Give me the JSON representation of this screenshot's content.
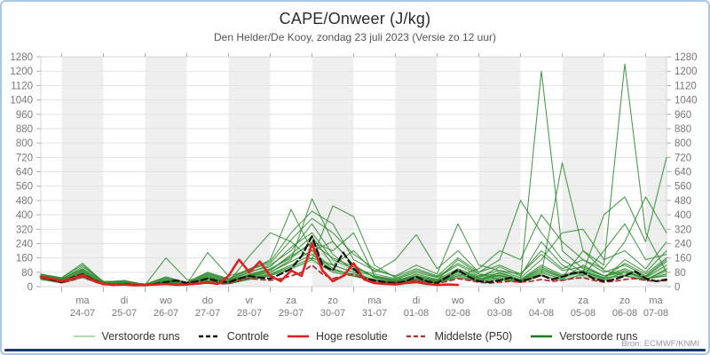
{
  "header": {
    "title": "CAPE/Onweer (J/kg)",
    "subtitle": "Den Helder/De Kooy, zondag 23 juli 2023 (Versie zo 12 uur)"
  },
  "footer": {
    "source": "Bron: ECMWF/KNMI"
  },
  "colors": {
    "frame_border": "#a9c7e7",
    "bottom_bar": "#1b3a6b",
    "band_grey": "#efefef",
    "gridline": "#e3e3e3",
    "axis_text": "#777777",
    "tick": "#aaaaaa",
    "member_green": "#2e8b2e",
    "member_lightgreen": "#b6d8b0",
    "controle_black": "#111111",
    "hires_red": "#e02020",
    "p50_darkred": "#b03030"
  },
  "legend": [
    {
      "label": "Verstoorde runs",
      "color": "#b6d8b0",
      "dash": "",
      "width": 2
    },
    {
      "label": "Controle",
      "color": "#111111",
      "dash": "5 3",
      "width": 2.4
    },
    {
      "label": "Hoge resolutie",
      "color": "#e02020",
      "dash": "",
      "width": 2.6
    },
    {
      "label": "Middelste (P50)",
      "color": "#b03030",
      "dash": "5 3",
      "width": 2.2
    },
    {
      "label": "Verstoorde runs",
      "color": "#1e7a1e",
      "dash": "",
      "width": 2.4
    }
  ],
  "chart_data": {
    "type": "line",
    "title": "CAPE/Onweer (J/kg)",
    "subtitle": "Den Helder/De Kooy, zondag 23 juli 2023 (Versie zo 12 uur)",
    "ylim": [
      0,
      1280
    ],
    "y_ticks": [
      0,
      80,
      160,
      240,
      320,
      400,
      480,
      560,
      640,
      720,
      800,
      880,
      960,
      1040,
      1120,
      1200,
      1280
    ],
    "x_range_hours": [
      0,
      360
    ],
    "grid": true,
    "legend_position": "bottom",
    "x_days": [
      {
        "dow": "ma",
        "date": "24-07"
      },
      {
        "dow": "di",
        "date": "25-07"
      },
      {
        "dow": "wo",
        "date": "26-07"
      },
      {
        "dow": "do",
        "date": "27-07"
      },
      {
        "dow": "vr",
        "date": "28-07"
      },
      {
        "dow": "za",
        "date": "29-07"
      },
      {
        "dow": "zo",
        "date": "30-07"
      },
      {
        "dow": "ma",
        "date": "31-07"
      },
      {
        "dow": "di",
        "date": "01-08"
      },
      {
        "dow": "wo",
        "date": "02-08"
      },
      {
        "dow": "do",
        "date": "03-08"
      },
      {
        "dow": "vr",
        "date": "04-08"
      },
      {
        "dow": "za",
        "date": "05-08"
      },
      {
        "dow": "zo",
        "date": "06-08"
      },
      {
        "dow": "ma",
        "date": "07-08"
      }
    ],
    "series": {
      "controle": {
        "name": "Controle",
        "step_hours": 6,
        "values": [
          55,
          40,
          25,
          50,
          70,
          40,
          15,
          10,
          15,
          10,
          8,
          15,
          25,
          35,
          20,
          30,
          45,
          30,
          25,
          45,
          60,
          50,
          45,
          70,
          100,
          170,
          280,
          120,
          90,
          190,
          100,
          45,
          35,
          25,
          20,
          30,
          55,
          30,
          20,
          55,
          95,
          55,
          30,
          25,
          35,
          50,
          30,
          45,
          65,
          40,
          55,
          75,
          80,
          45,
          30,
          40,
          60,
          85,
          45,
          30,
          40
        ]
      },
      "hoge_resolutie": {
        "name": "Hoge resolutie",
        "step_hours": 6,
        "values": [
          55,
          45,
          30,
          45,
          65,
          35,
          15,
          10,
          12,
          8,
          10,
          12,
          15,
          10,
          12,
          18,
          22,
          15,
          60,
          150,
          80,
          140,
          60,
          30,
          90,
          60,
          240,
          90,
          30,
          60,
          130,
          40,
          20,
          15,
          12,
          20,
          25,
          15,
          10,
          12,
          10
        ]
      },
      "middelste_p50": {
        "name": "Middelste (P50)",
        "step_hours": 6,
        "values": [
          50,
          35,
          22,
          35,
          55,
          30,
          12,
          8,
          10,
          8,
          8,
          10,
          15,
          12,
          10,
          15,
          20,
          15,
          18,
          35,
          45,
          40,
          35,
          45,
          60,
          80,
          120,
          70,
          45,
          60,
          70,
          40,
          30,
          25,
          20,
          25,
          35,
          25,
          18,
          30,
          45,
          35,
          25,
          20,
          25,
          30,
          25,
          30,
          40,
          30,
          35,
          45,
          50,
          35,
          25,
          30,
          40,
          45,
          35,
          30,
          35
        ]
      },
      "verstoorde_runs": {
        "name": "Verstoorde runs",
        "step_hours": 12,
        "members": [
          [
            60,
            40,
            110,
            30,
            25,
            15,
            45,
            20,
            60,
            30,
            80,
            120,
            200,
            350,
            180,
            90,
            60,
            40,
            80,
            50,
            120,
            60,
            90,
            70,
            200,
            100,
            150,
            80,
            120,
            60,
            150
          ],
          [
            55,
            30,
            70,
            20,
            15,
            10,
            160,
            40,
            30,
            20,
            60,
            80,
            150,
            490,
            250,
            120,
            50,
            30,
            40,
            25,
            80,
            40,
            60,
            30,
            90,
            50,
            200,
            120,
            1240,
            300,
            80
          ],
          [
            70,
            50,
            130,
            25,
            35,
            12,
            30,
            15,
            190,
            60,
            90,
            150,
            430,
            200,
            100,
            60,
            40,
            25,
            60,
            35,
            150,
            70,
            40,
            25,
            70,
            690,
            200,
            90,
            60,
            40,
            90
          ],
          [
            45,
            25,
            60,
            15,
            10,
            8,
            25,
            12,
            50,
            25,
            170,
            300,
            250,
            150,
            450,
            390,
            120,
            50,
            30,
            20,
            60,
            30,
            80,
            40,
            1200,
            200,
            100,
            60,
            80,
            50,
            120
          ],
          [
            50,
            35,
            90,
            20,
            20,
            10,
            35,
            18,
            70,
            40,
            60,
            90,
            180,
            280,
            120,
            200,
            80,
            150,
            290,
            100,
            200,
            80,
            150,
            480,
            300,
            150,
            80,
            400,
            500,
            250,
            720
          ],
          [
            65,
            45,
            95,
            30,
            28,
            14,
            50,
            25,
            80,
            45,
            100,
            140,
            300,
            420,
            350,
            150,
            90,
            60,
            120,
            70,
            350,
            120,
            90,
            50,
            150,
            300,
            320,
            150,
            200,
            100,
            250
          ],
          [
            40,
            20,
            50,
            10,
            8,
            6,
            20,
            10,
            25,
            15,
            40,
            60,
            100,
            150,
            80,
            60,
            30,
            20,
            40,
            25,
            70,
            35,
            50,
            25,
            80,
            40,
            120,
            60,
            90,
            45,
            60
          ],
          [
            58,
            38,
            85,
            22,
            18,
            9,
            30,
            14,
            55,
            28,
            70,
            100,
            160,
            250,
            200,
            300,
            60,
            35,
            55,
            30,
            90,
            50,
            110,
            60,
            250,
            120,
            60,
            200,
            350,
            150,
            180
          ],
          [
            48,
            28,
            65,
            18,
            12,
            7,
            22,
            11,
            35,
            20,
            50,
            70,
            120,
            180,
            90,
            70,
            40,
            25,
            45,
            28,
            60,
            100,
            200,
            150,
            400,
            250,
            150,
            100,
            250,
            500,
            300
          ],
          [
            62,
            42,
            100,
            26,
            22,
            11,
            40,
            18,
            65,
            35,
            85,
            110,
            220,
            300,
            150,
            100,
            70,
            45,
            90,
            55,
            130,
            70,
            60,
            35,
            100,
            55,
            80,
            45,
            150,
            80,
            200
          ],
          [
            52,
            32,
            75,
            16,
            14,
            8,
            28,
            13,
            45,
            22,
            55,
            80,
            140,
            200,
            250,
            120,
            50,
            30,
            70,
            40,
            100,
            55,
            75,
            40,
            120,
            65,
            90,
            50,
            60,
            35,
            100
          ],
          [
            68,
            48,
            120,
            28,
            30,
            13,
            55,
            22,
            75,
            40,
            95,
            130,
            260,
            380,
            300,
            180,
            100,
            55,
            100,
            60,
            160,
            80,
            120,
            70,
            180,
            90,
            110,
            60,
            100,
            55,
            140
          ],
          [
            44,
            24,
            55,
            12,
            10,
            6,
            18,
            9,
            30,
            16,
            45,
            65,
            110,
            160,
            120,
            80,
            35,
            22,
            35,
            20,
            50,
            28,
            40,
            22,
            60,
            32,
            70,
            38,
            80,
            42,
            70
          ],
          [
            56,
            36,
            80,
            20,
            16,
            9,
            32,
            15,
            50,
            26,
            65,
            95,
            170,
            240,
            160,
            110,
            55,
            32,
            60,
            35,
            85,
            45,
            65,
            35,
            110,
            58,
            85,
            48,
            130,
            70,
            160
          ]
        ]
      },
      "verstoorde_runs_oud": {
        "name": "Verstoorde runs",
        "step_hours": 12,
        "members": [
          [
            50,
            30,
            70,
            18,
            14,
            8,
            25,
            12,
            40,
            20,
            50,
            70,
            120,
            180,
            100,
            70,
            40,
            25,
            50,
            30,
            70,
            40,
            55,
            30,
            80,
            45,
            65,
            40,
            70,
            45,
            80
          ],
          [
            60,
            35,
            90,
            22,
            18,
            10,
            35,
            16,
            55,
            28,
            65,
            90,
            160,
            220,
            140,
            90,
            55,
            35,
            65,
            40,
            90,
            50,
            70,
            40,
            100,
            55,
            80,
            50,
            90,
            55,
            110
          ],
          [
            42,
            22,
            55,
            14,
            10,
            7,
            20,
            10,
            30,
            16,
            42,
            60,
            100,
            140,
            80,
            55,
            32,
            20,
            40,
            24,
            55,
            32,
            45,
            26,
            65,
            38,
            55,
            34,
            60,
            38,
            65
          ],
          [
            55,
            32,
            100,
            20,
            16,
            9,
            30,
            14,
            48,
            24,
            58,
            80,
            140,
            190,
            120,
            80,
            48,
            30,
            58,
            35,
            80,
            45,
            62,
            36,
            90,
            50,
            72,
            44,
            80,
            50,
            95
          ],
          [
            46,
            26,
            62,
            16,
            12,
            8,
            22,
            11,
            34,
            18,
            46,
            66,
            110,
            160,
            90,
            62,
            36,
            22,
            44,
            27,
            62,
            36,
            50,
            28,
            72,
            42,
            60,
            38,
            66,
            42,
            72
          ]
        ]
      }
    }
  }
}
